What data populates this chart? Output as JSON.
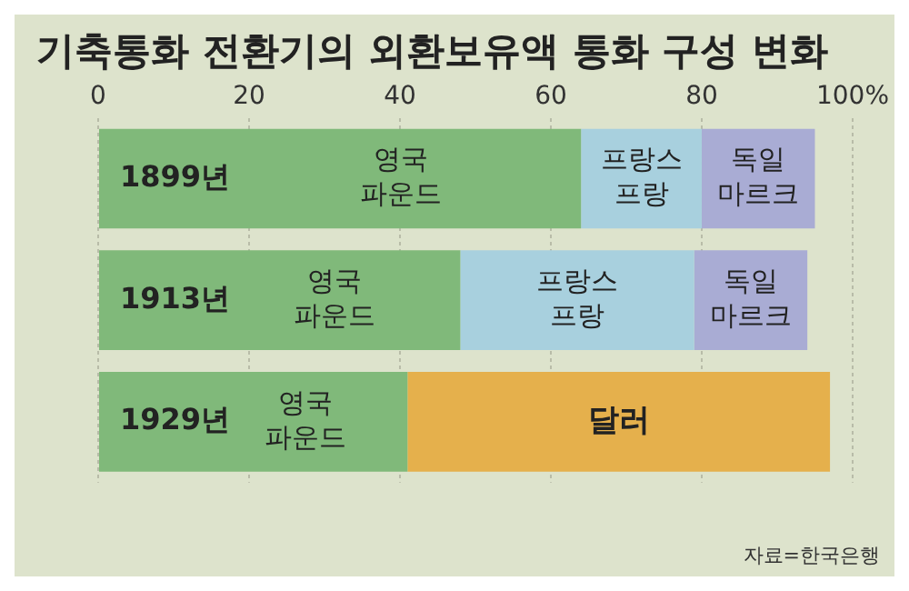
{
  "chart_data": {
    "type": "bar",
    "title": "기축통화 전환기의 외환보유액 통화 구성 변화",
    "orientation": "horizontal",
    "stacked": true,
    "categories": [
      "1899년",
      "1913년",
      "1929년"
    ],
    "series": [
      {
        "name": "영국 파운드",
        "color": "#80b97a",
        "values": [
          64,
          48,
          41
        ]
      },
      {
        "name": "프랑스 프랑",
        "color": "#a8d0de",
        "values": [
          16,
          31,
          null
        ]
      },
      {
        "name": "독일 마르크",
        "color": "#a9acd4",
        "values": [
          15,
          15,
          null
        ]
      },
      {
        "name": "달러",
        "color": "#e5b04c",
        "values": [
          null,
          null,
          56
        ]
      }
    ],
    "xlim": [
      0,
      100
    ],
    "xticks": [
      0,
      20,
      40,
      60,
      80,
      {
        "value": 100,
        "label": "100%"
      }
    ],
    "grid": "x",
    "legend": false,
    "annotations": [
      "자료=한국은행"
    ]
  }
}
